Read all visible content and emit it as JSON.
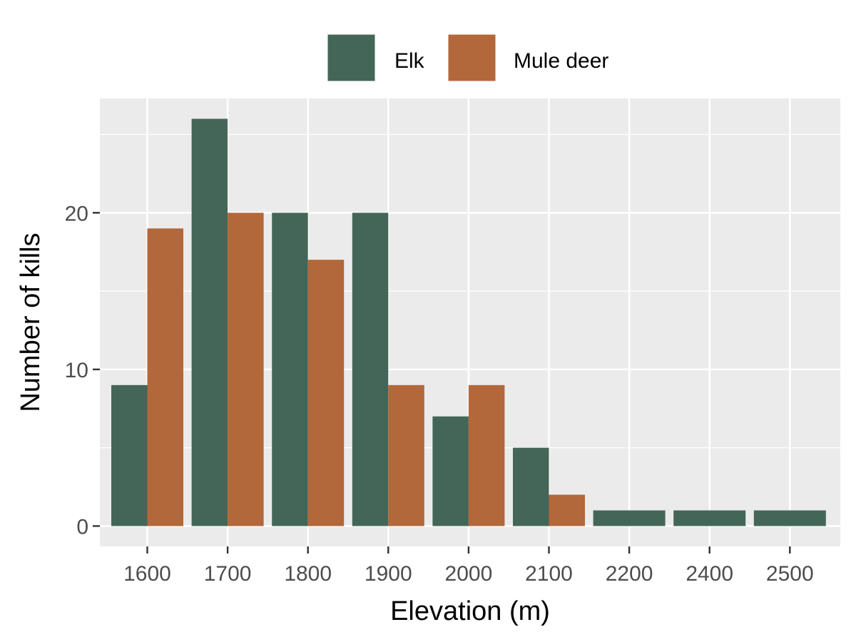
{
  "chart_data": {
    "type": "bar",
    "title": "",
    "xlabel": "Elevation (m)",
    "ylabel": "Number of kills",
    "categories": [
      "1600",
      "1700",
      "1800",
      "1900",
      "2000",
      "2100",
      "2200",
      "2400",
      "2500"
    ],
    "series": [
      {
        "name": "Elk",
        "color": "#446658",
        "values": [
          9,
          26,
          20,
          20,
          7,
          5,
          1,
          1,
          1
        ]
      },
      {
        "name": "Mule deer",
        "color": "#b2683a",
        "values": [
          19,
          20,
          17,
          9,
          9,
          2,
          0,
          0,
          0
        ]
      }
    ],
    "ylim": [
      -1.3,
      27.3
    ],
    "yticks": [
      0,
      10,
      20
    ],
    "grid": true,
    "legend_position": "top"
  }
}
